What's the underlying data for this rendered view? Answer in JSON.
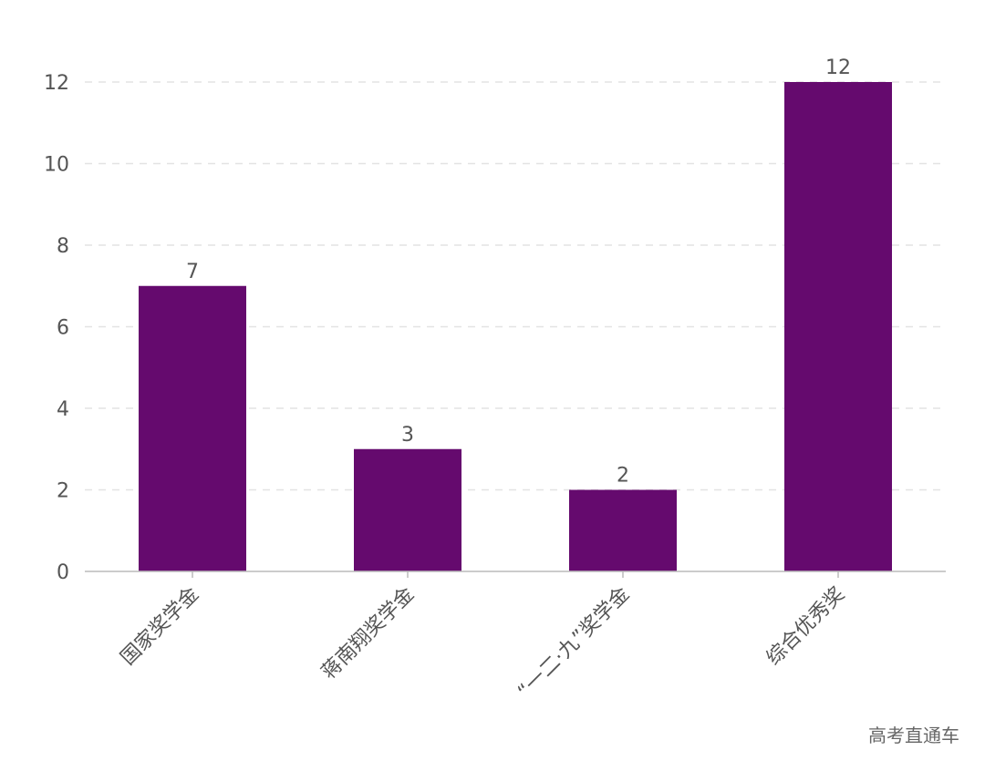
{
  "chart_data": {
    "type": "bar",
    "categories": [
      "国家奖学金",
      "蒋南翔奖学金",
      "“一二·九”奖学金",
      "综合优秀奖"
    ],
    "values": [
      7,
      3,
      2,
      12
    ],
    "ylim": [
      0,
      12
    ],
    "yticks": [
      0,
      2,
      4,
      6,
      8,
      10,
      12
    ],
    "grid": true,
    "bar_color": "#650A6E",
    "title": "",
    "xlabel": "",
    "ylabel": ""
  },
  "watermark": "高考直通车"
}
